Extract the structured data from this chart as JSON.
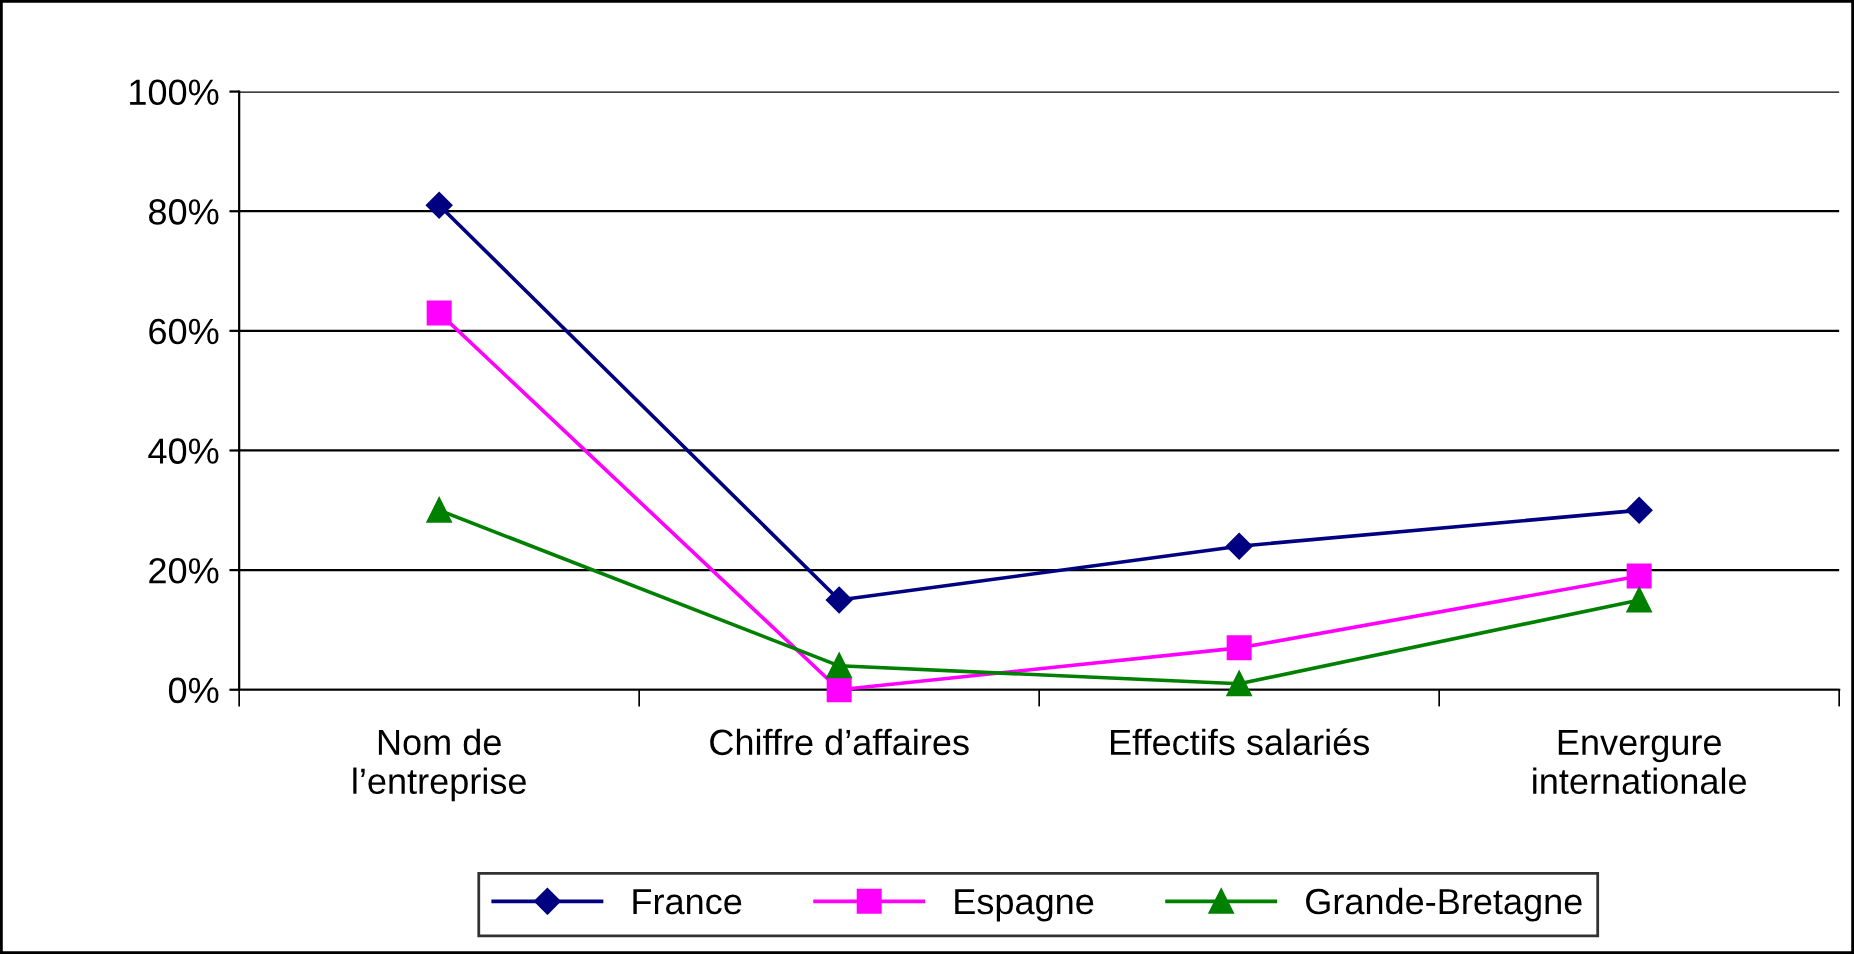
{
  "chart_data": {
    "type": "line",
    "categories": [
      "Nom de\nl’entreprise",
      "Chiffre d’affaires",
      "Effectifs salariés",
      "Envergure\ninternationale"
    ],
    "series": [
      {
        "name": "France",
        "color": "#000080",
        "marker": "diamond",
        "values": [
          81,
          15,
          24,
          30
        ]
      },
      {
        "name": "Espagne",
        "color": "#ff00ff",
        "marker": "square",
        "values": [
          63,
          0,
          7,
          19
        ]
      },
      {
        "name": "Grande-Bretagne",
        "color": "#008000",
        "marker": "triangle",
        "values": [
          30,
          4,
          1,
          15
        ]
      }
    ],
    "ylim": [
      0,
      100
    ],
    "yticks": [
      {
        "value": 0,
        "label": "0%"
      },
      {
        "value": 20,
        "label": "20%"
      },
      {
        "value": 40,
        "label": "40%"
      },
      {
        "value": 60,
        "label": "60%"
      },
      {
        "value": 80,
        "label": "80%"
      },
      {
        "value": 100,
        "label": "100%"
      }
    ],
    "grid": "y",
    "legend": "bottom",
    "line_style": "solid"
  }
}
